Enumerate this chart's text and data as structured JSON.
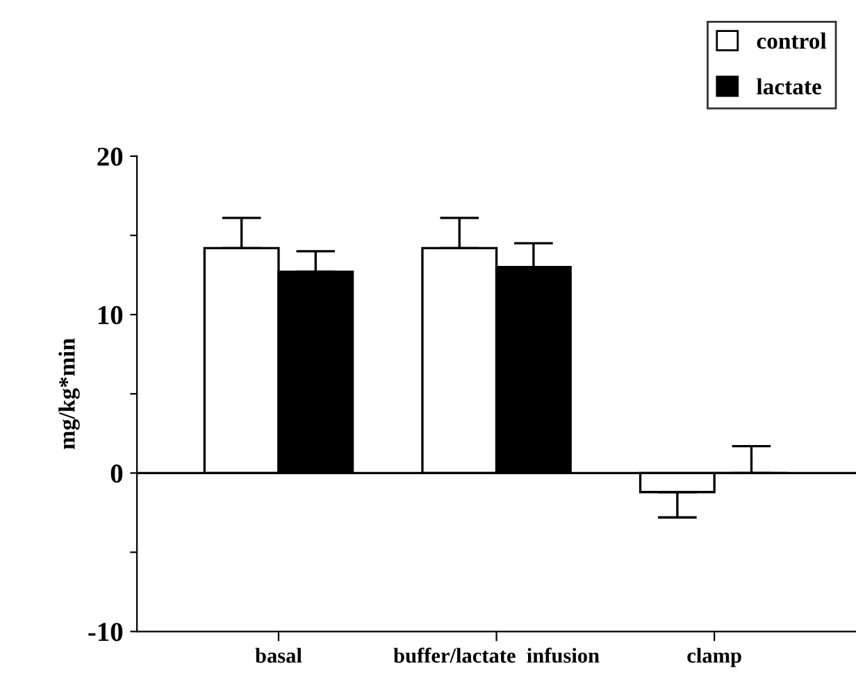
{
  "chart_data": {
    "type": "bar",
    "ylabel": "mg/kg*min",
    "categories": [
      "basal",
      "buffer/lactate  infusion",
      "clamp"
    ],
    "series": [
      {
        "name": "control",
        "color": "#ffffff",
        "values": [
          14.2,
          14.2,
          -1.2
        ],
        "errors": [
          1.9,
          1.9,
          1.6
        ]
      },
      {
        "name": "lactate",
        "color": "#000000",
        "values": [
          12.7,
          13.0,
          0
        ],
        "errors": [
          1.3,
          1.5,
          1.7
        ]
      }
    ],
    "ylim": [
      -10,
      20
    ],
    "yticks": [
      -10,
      {
        "value": -5,
        "label": null
      },
      0,
      {
        "value": 5,
        "label": null
      },
      10,
      {
        "value": 15,
        "label": null
      },
      20
    ],
    "ref_lines": [
      {
        "axis": "y",
        "value": 0,
        "label": null,
        "color": "#000000"
      }
    ],
    "legend": "top right",
    "grid": false
  }
}
